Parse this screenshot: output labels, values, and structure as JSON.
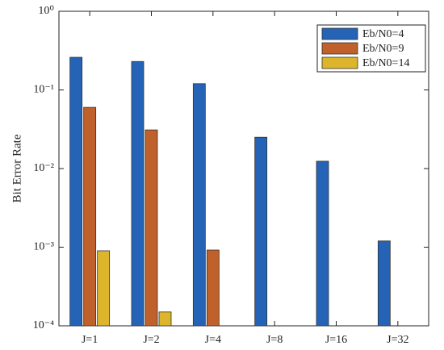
{
  "chart_data": {
    "type": "bar",
    "y_label": "Bit Error Rate",
    "log_y": true,
    "categories": [
      "J=1",
      "J=2",
      "J=4",
      "J=8",
      "J=16",
      "J=32"
    ],
    "series": [
      {
        "name": "Eb/N0=4",
        "color": "#2563b6",
        "values": [
          0.26,
          0.23,
          0.12,
          0.025,
          0.0124,
          0.0012
        ]
      },
      {
        "name": "Eb/N0=9",
        "color": "#c0602a",
        "values": [
          0.06,
          0.031,
          0.00092,
          null,
          null,
          null
        ]
      },
      {
        "name": "Eb/N0=14",
        "color": "#ddb52c",
        "values": [
          0.0009,
          0.00015,
          null,
          null,
          null,
          null
        ]
      }
    ],
    "ylim": [
      0.0001,
      1
    ],
    "yticks": [
      {
        "value": 0.0001,
        "label": "10⁻⁴"
      },
      {
        "value": 0.001,
        "label": "10⁻³"
      },
      {
        "value": 0.01,
        "label": "10⁻²"
      },
      {
        "value": 0.1,
        "label": "10⁻¹"
      },
      {
        "value": 1,
        "label": "10⁰"
      }
    ],
    "legend": "top-right",
    "grid": false
  }
}
